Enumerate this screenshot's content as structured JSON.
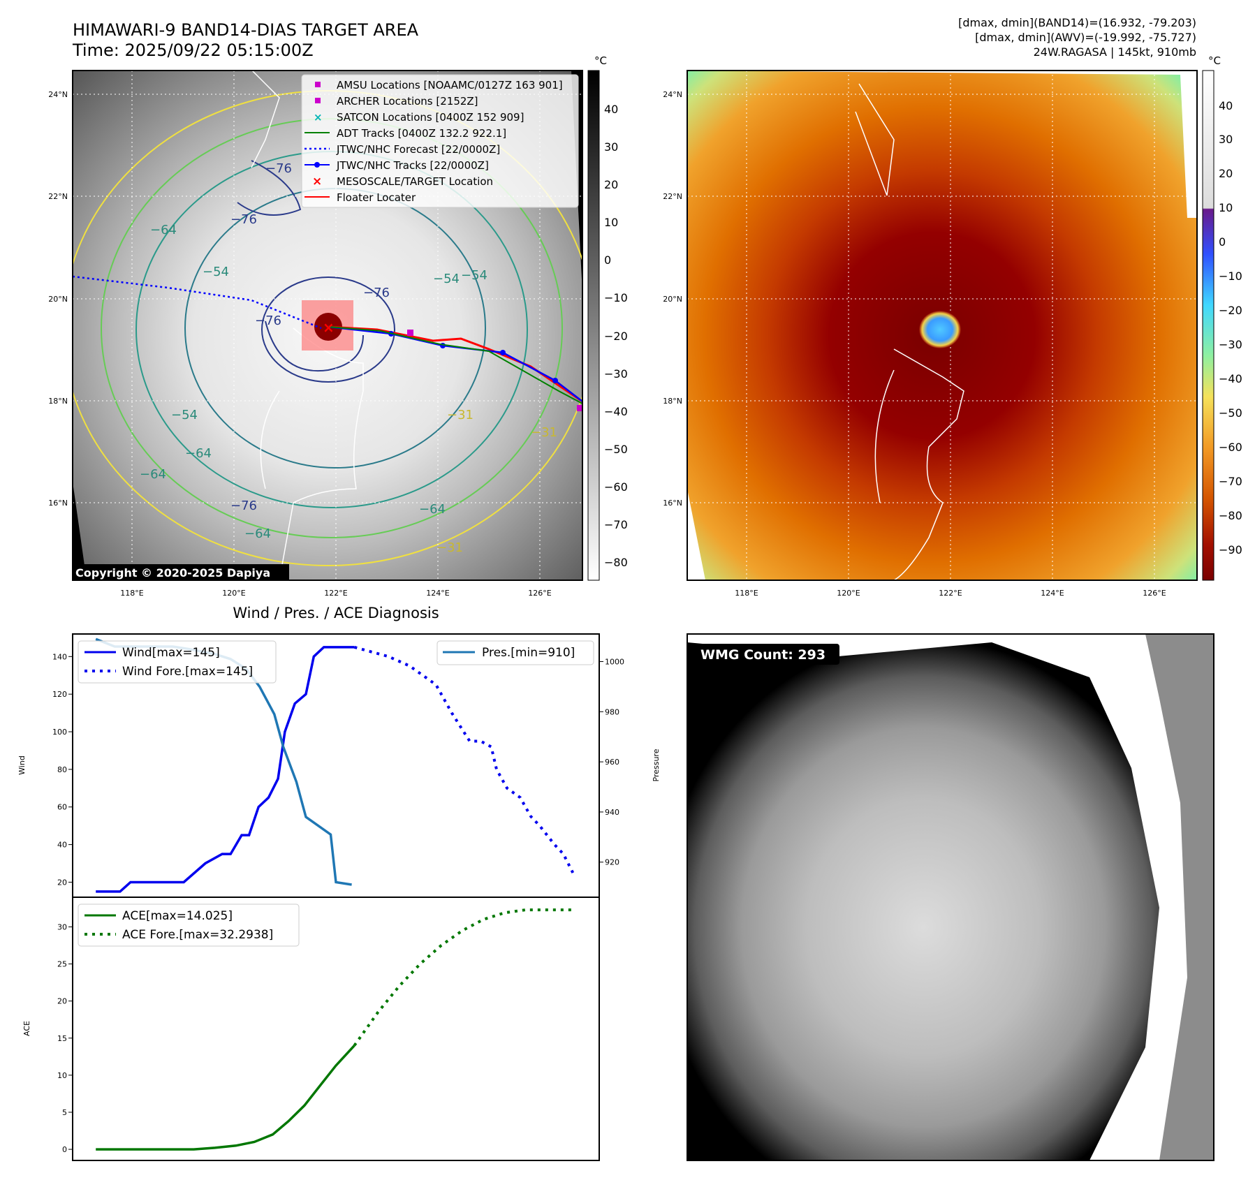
{
  "header": {
    "title_line1": "HIMAWARI-9 BAND14-DIAS TARGET AREA",
    "title_line2": "Time: 2025/09/22 05:15:00Z",
    "info_line1": "[dmax, dmin](BAND14)=(16.932, -79.203)",
    "info_line2": "[dmax, dmin](AWV)=(-19.992, -75.727)",
    "info_line3": "24W.RAGASA | 145kt, 910mb"
  },
  "colors": {
    "wind": "#0000ee",
    "pressure": "#1f77b4",
    "ace": "#007700",
    "adt": "#008000",
    "jtwc": "#0000ff",
    "amsu": "#cc00cc",
    "satcon": "#00b5b5",
    "floater": "#ff0000",
    "eye": "#8b0000"
  },
  "map_axes": {
    "lat_ticks": [
      "24°N",
      "22°N",
      "20°N",
      "18°N",
      "16°N"
    ],
    "lon_ticks": [
      "118°E",
      "120°E",
      "122°E",
      "124°E",
      "126°E"
    ],
    "colorbar_unit": "°C",
    "gray_colorbar_ticks": [
      "40",
      "30",
      "20",
      "10",
      "0",
      "−10",
      "−20",
      "−30",
      "−40",
      "−50",
      "−60",
      "−70",
      "−80"
    ],
    "color_colorbar_ticks": [
      "40",
      "30",
      "20",
      "10",
      "0",
      "−10",
      "−20",
      "−30",
      "−40",
      "−50",
      "−60",
      "−70",
      "−80",
      "−90"
    ]
  },
  "contour_labels": [
    "−76",
    "−76",
    "−76",
    "−76",
    "−64",
    "−54",
    "−54",
    "−54",
    "−54",
    "−64",
    "−64",
    "−64",
    "−76",
    "−64",
    "−31",
    "−31",
    "−31",
    "−54",
    "−54"
  ],
  "legend": {
    "items": [
      "AMSU Locations [NOAAMC/0127Z 163 901]",
      "ARCHER Locations [2152Z]",
      "SATCON Locations [0400Z 152 909]",
      "ADT Tracks [0400Z 132.2 922.1]",
      "JTWC/NHC Forecast [22/0000Z]",
      "JTWC/NHC Tracks [22/0000Z]",
      "MESOSCALE/TARGET Location",
      "Floater Locater"
    ]
  },
  "copyright": "Copyright © 2020-2025 Dapiya",
  "wmg_label": "WMG Count: 293",
  "chart_data": [
    {
      "type": "line",
      "title": "Wind / Pres. / ACE Diagnosis",
      "ylabel": "Wind",
      "y2label": "Pressure",
      "ylim": [
        12,
        152
      ],
      "y2lim": [
        906,
        1011
      ],
      "xlim": [
        0,
        1
      ],
      "yticks": [
        "140",
        "120",
        "100",
        "80",
        "60",
        "40",
        "20"
      ],
      "y2ticks": [
        "1000",
        "980",
        "960",
        "940",
        "920"
      ],
      "legend_left": [
        "Wind[max=145]",
        "Wind Fore.[max=145]"
      ],
      "legend_right": [
        "Pres.[min=910]"
      ],
      "series": [
        {
          "name": "Wind[max=145]",
          "style": "solid",
          "x": [
            0.044,
            0.09,
            0.11,
            0.165,
            0.193,
            0.211,
            0.252,
            0.284,
            0.3,
            0.321,
            0.335,
            0.353,
            0.372,
            0.39,
            0.403,
            0.422,
            0.443,
            0.458,
            0.477,
            0.504,
            0.535
          ],
          "y": [
            15,
            15,
            20,
            20,
            20,
            20,
            30,
            35,
            35,
            45,
            45,
            60,
            65,
            75,
            100,
            115,
            120,
            140,
            145,
            145,
            145
          ]
        },
        {
          "name": "Wind Fore.[max=145]",
          "style": "dotted",
          "x": [
            0.535,
            0.6,
            0.64,
            0.69,
            0.72,
            0.754,
            0.775,
            0.795,
            0.805,
            0.825,
            0.85,
            0.87,
            0.887,
            0.915,
            0.932,
            0.95
          ],
          "y": [
            145,
            140,
            135,
            125,
            110,
            95,
            95,
            92,
            80,
            70,
            65,
            55,
            50,
            40,
            35,
            25
          ]
        },
        {
          "name": "Pres.[min=910]",
          "style": "solid",
          "axis": "right",
          "x": [
            0.044,
            0.08,
            0.1,
            0.15,
            0.19,
            0.22,
            0.27,
            0.3,
            0.33,
            0.355,
            0.383,
            0.4,
            0.425,
            0.443,
            0.49,
            0.5,
            0.53
          ],
          "y": [
            1009,
            1006,
            1006,
            1006,
            1006,
            1005,
            1003,
            1001,
            997,
            990,
            979,
            966,
            952,
            938,
            931,
            912,
            911
          ]
        }
      ]
    },
    {
      "type": "line",
      "ylabel": "ACE",
      "ylim": [
        -1.5,
        34
      ],
      "xlim": [
        0,
        1
      ],
      "yticks": [
        "30",
        "25",
        "20",
        "15",
        "10",
        "5",
        "0"
      ],
      "legend": [
        "ACE[max=14.025]",
        "ACE Fore.[max=32.2938]"
      ],
      "series": [
        {
          "name": "ACE[max=14.025]",
          "style": "solid",
          "x": [
            0.044,
            0.1,
            0.15,
            0.19,
            0.23,
            0.27,
            0.31,
            0.345,
            0.38,
            0.41,
            0.44,
            0.47,
            0.5,
            0.535
          ],
          "y": [
            0,
            0,
            0,
            0,
            0,
            0.2,
            0.5,
            1,
            2,
            3.8,
            5.9,
            8.6,
            11.3,
            14.0
          ]
        },
        {
          "name": "ACE Fore.[max=32.2938]",
          "style": "dotted",
          "x": [
            0.535,
            0.58,
            0.62,
            0.66,
            0.7,
            0.74,
            0.78,
            0.82,
            0.86,
            0.9,
            0.95
          ],
          "y": [
            14.0,
            18.5,
            22.0,
            25.0,
            27.5,
            29.5,
            31.0,
            31.9,
            32.3,
            32.3,
            32.3
          ]
        }
      ]
    }
  ]
}
